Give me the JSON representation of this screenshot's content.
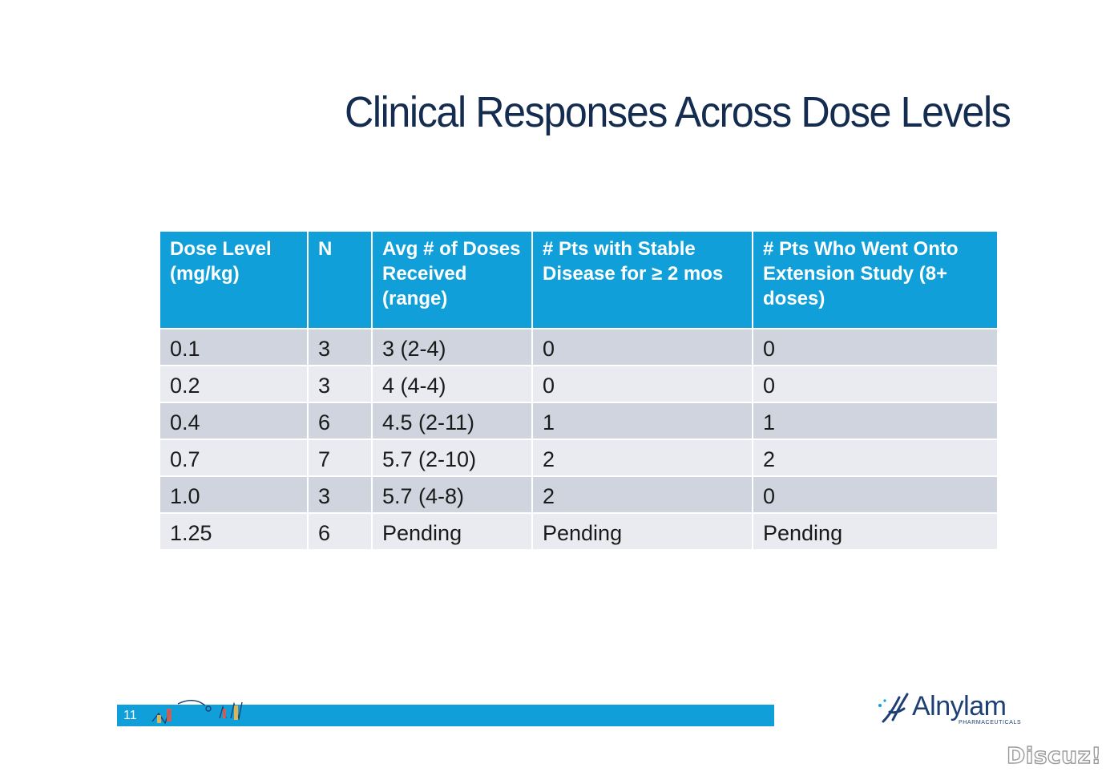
{
  "slide": {
    "title": "Clinical Responses Across Dose Levels",
    "page_number": "11"
  },
  "table": {
    "headers": [
      "Dose Level (mg/kg)",
      "N",
      "Avg # of Doses Received (range)",
      "# Pts with Stable Disease for ≥ 2 mos",
      "# Pts Who Went Onto Extension Study (8+ doses)"
    ],
    "rows": [
      [
        "0.1",
        "3",
        "3 (2-4)",
        "0",
        "0"
      ],
      [
        "0.2",
        "3",
        "4 (4-4)",
        "0",
        "0"
      ],
      [
        "0.4",
        "6",
        "4.5 (2-11)",
        "1",
        "1"
      ],
      [
        "0.7",
        "7",
        "5.7 (2-10)",
        "2",
        "2"
      ],
      [
        "1.0",
        "3",
        "5.7 (4-8)",
        "2",
        "0"
      ],
      [
        "1.25",
        "6",
        "Pending",
        "Pending",
        "Pending"
      ]
    ]
  },
  "logo": {
    "name": "Alnylam",
    "subtitle": "PHARMACEUTICALS"
  },
  "watermark": "Discuz!",
  "colors": {
    "header_bg": "#109fd8",
    "row_dark": "#cfd4de",
    "row_light": "#e9ebf0",
    "title": "#142c4f",
    "logo": "#1d3f73"
  }
}
